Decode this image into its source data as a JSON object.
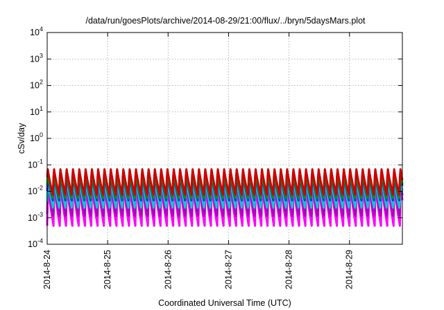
{
  "chart_data": {
    "type": "line",
    "title": "/data/run/goesPlots/archive/2014-08-29/21:00/flux/../bryn/5daysMars.plot",
    "xlabel": "Coordinated Universal Time (UTC)",
    "ylabel": "cSv/day",
    "yscale": "log",
    "ylim": [
      0.0001,
      10000
    ],
    "xlim": [
      "2014-08-24T00:00",
      "2014-08-29T21:00"
    ],
    "grid": true,
    "legend": "none",
    "x_ticks": [
      "2014-8-24",
      "2014-8-25",
      "2014-8-26",
      "2014-8-27",
      "2014-8-28",
      "2014-8-29"
    ],
    "y_ticks": [
      {
        "value": 0.0001,
        "base": "10",
        "exp": "-4"
      },
      {
        "value": 0.001,
        "base": "10",
        "exp": "-3"
      },
      {
        "value": 0.01,
        "base": "10",
        "exp": "-2"
      },
      {
        "value": 0.1,
        "base": "10",
        "exp": "-1"
      },
      {
        "value": 1,
        "base": "10",
        "exp": "0"
      },
      {
        "value": 10,
        "base": "10",
        "exp": "1"
      },
      {
        "value": 100,
        "base": "10",
        "exp": "2"
      },
      {
        "value": 1000,
        "base": "10",
        "exp": "3"
      },
      {
        "value": 10000,
        "base": "10",
        "exp": "4"
      }
    ],
    "orbit_period_hours": 2.5,
    "series": [
      {
        "color": "#ff00ff",
        "peak": 0.02,
        "trough": 0.0005
      },
      {
        "color": "#b000c0",
        "peak": 0.03,
        "trough": 0.0009
      },
      {
        "color": "#00cccc",
        "peak": 0.035,
        "trough": 0.002
      },
      {
        "color": "#2020ff",
        "peak": 0.05,
        "trough": 0.004
      },
      {
        "color": "#009900",
        "peak": 0.06,
        "trough": 0.005
      },
      {
        "color": "#cc0000",
        "peak": 0.09,
        "trough": 0.007
      }
    ]
  }
}
